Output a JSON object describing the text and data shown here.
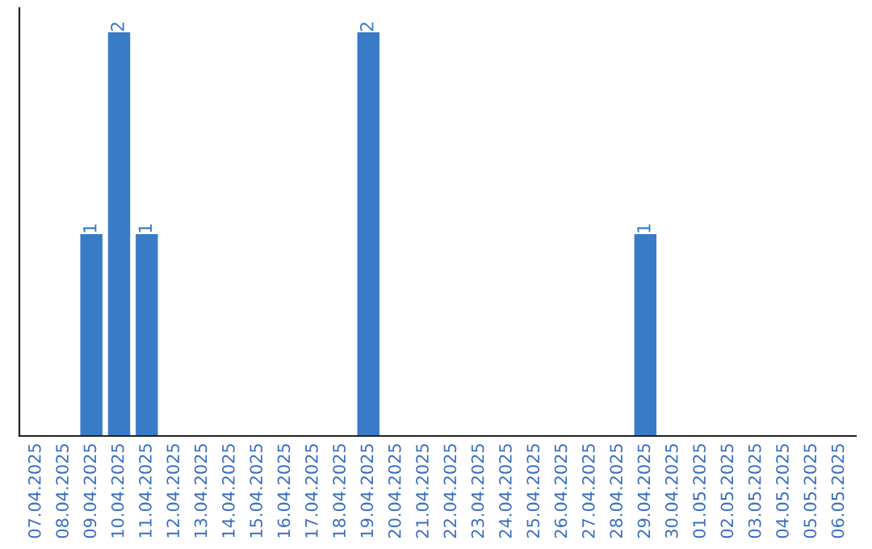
{
  "chart_data": {
    "type": "bar",
    "categories": [
      "07.04.2025",
      "08.04.2025",
      "09.04.2025",
      "10.04.2025",
      "11.04.2025",
      "12.04.2025",
      "13.04.2025",
      "14.04.2025",
      "15.04.2025",
      "16.04.2025",
      "17.04.2025",
      "18.04.2025",
      "19.04.2025",
      "20.04.2025",
      "21.04.2025",
      "22.04.2025",
      "23.04.2025",
      "24.04.2025",
      "25.04.2025",
      "26.04.2025",
      "27.04.2025",
      "28.04.2025",
      "29.04.2025",
      "30.04.2025",
      "01.05.2025",
      "02.05.2025",
      "03.05.2025",
      "04.05.2025",
      "05.05.2025",
      "06.05.2025"
    ],
    "values": [
      0,
      0,
      1,
      2,
      1,
      0,
      0,
      0,
      0,
      0,
      0,
      0,
      2,
      0,
      0,
      0,
      0,
      0,
      0,
      0,
      0,
      0,
      1,
      0,
      0,
      0,
      0,
      0,
      0,
      0
    ],
    "color": "#3a7bc8",
    "value_labels": [
      null,
      null,
      "1",
      "2",
      "1",
      null,
      null,
      null,
      null,
      null,
      null,
      null,
      "2",
      null,
      null,
      null,
      null,
      null,
      null,
      null,
      null,
      null,
      "1",
      null,
      null,
      null,
      null,
      null,
      null,
      null
    ],
    "ylim": [
      0,
      2.12
    ],
    "tick_labels": "x",
    "grid": false,
    "legend": false
  }
}
